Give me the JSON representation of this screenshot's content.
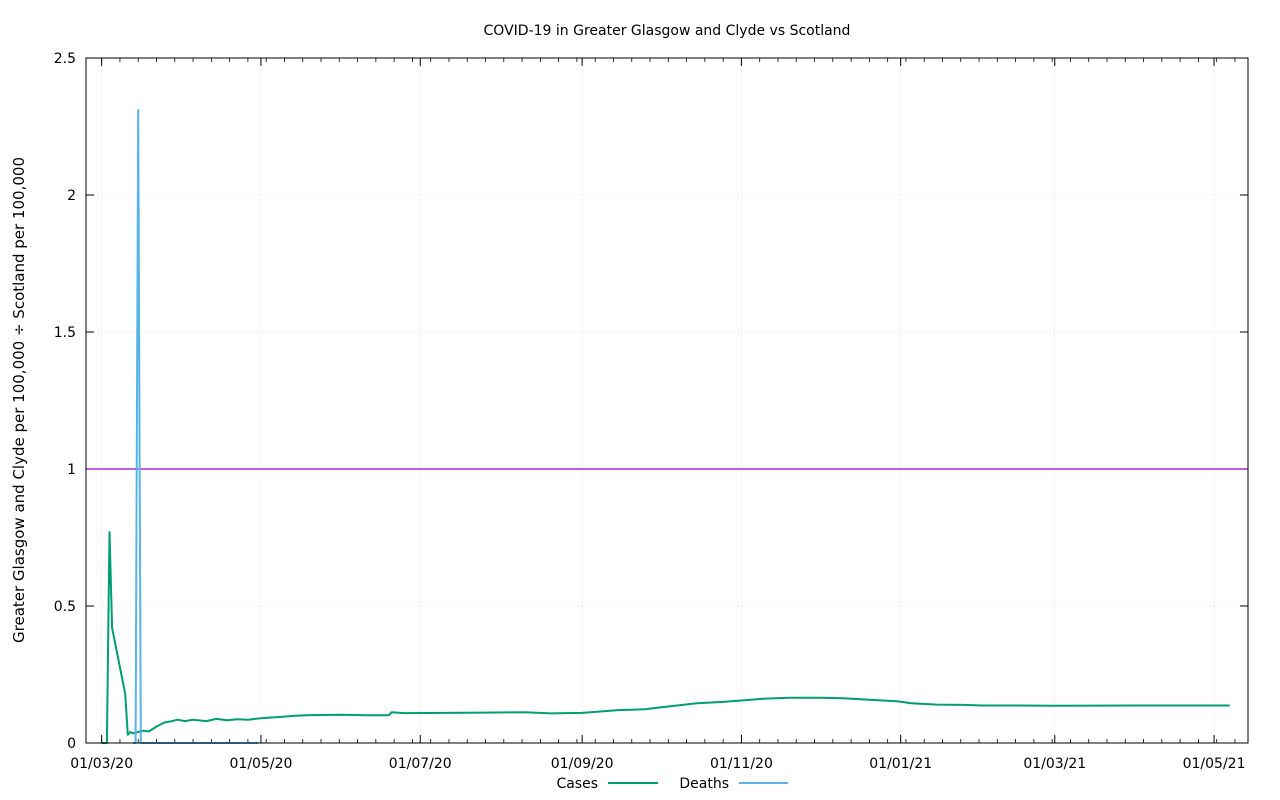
{
  "chart_data": {
    "type": "line",
    "title": "COVID-19 in Greater Glasgow and Clyde vs Scotland",
    "xlabel": "",
    "ylabel": "Greater Glasgow and Clyde per 100,000 ÷ Scotland per 100,000",
    "x_start": "2020-02-24",
    "x_end": "2021-05-14",
    "ylim": [
      0,
      2.5
    ],
    "y_ticks": [
      0,
      0.5,
      1,
      1.5,
      2,
      2.5
    ],
    "y_tick_labels": [
      "0",
      "0.5",
      "1",
      "1.5",
      "2",
      "2.5"
    ],
    "x_ticks": [
      "2020-03-01",
      "2020-05-01",
      "2020-07-01",
      "2020-09-01",
      "2020-11-01",
      "2021-01-01",
      "2021-03-01",
      "2021-05-01"
    ],
    "x_tick_labels": [
      "01/03/20",
      "01/05/20",
      "01/07/20",
      "01/09/20",
      "01/11/20",
      "01/01/21",
      "01/03/21",
      "01/05/21"
    ],
    "grid": true,
    "legend_position": "bottom",
    "reference_line": {
      "y": 1,
      "color": "#9400d3"
    },
    "series": [
      {
        "name": "Cases",
        "color": "#009e73",
        "points": [
          [
            "2020-03-01",
            0
          ],
          [
            "2020-03-02",
            0
          ],
          [
            "2020-03-03",
            0
          ],
          [
            "2020-03-04",
            0.77
          ],
          [
            "2020-03-05",
            0.42
          ],
          [
            "2020-03-10",
            0.18
          ],
          [
            "2020-03-11",
            0.03
          ],
          [
            "2020-03-12",
            0.04
          ],
          [
            "2020-03-13",
            0.035
          ],
          [
            "2020-03-15",
            0.04
          ],
          [
            "2020-03-17",
            0.045
          ],
          [
            "2020-03-19",
            0.042
          ],
          [
            "2020-03-22",
            0.06
          ],
          [
            "2020-03-25",
            0.075
          ],
          [
            "2020-03-28",
            0.08
          ],
          [
            "2020-03-30",
            0.085
          ],
          [
            "2020-04-02",
            0.08
          ],
          [
            "2020-04-05",
            0.085
          ],
          [
            "2020-04-10",
            0.08
          ],
          [
            "2020-04-14",
            0.088
          ],
          [
            "2020-04-18",
            0.083
          ],
          [
            "2020-04-22",
            0.087
          ],
          [
            "2020-04-26",
            0.085
          ],
          [
            "2020-05-01",
            0.09
          ],
          [
            "2020-05-08",
            0.095
          ],
          [
            "2020-05-15",
            0.1
          ],
          [
            "2020-05-20",
            0.102
          ],
          [
            "2020-06-01",
            0.103
          ],
          [
            "2020-06-10",
            0.101
          ],
          [
            "2020-06-19",
            0.101
          ],
          [
            "2020-06-20",
            0.112
          ],
          [
            "2020-06-25",
            0.109
          ],
          [
            "2020-07-10",
            0.11
          ],
          [
            "2020-07-25",
            0.111
          ],
          [
            "2020-08-10",
            0.112
          ],
          [
            "2020-08-20",
            0.108
          ],
          [
            "2020-09-01",
            0.11
          ],
          [
            "2020-09-15",
            0.12
          ],
          [
            "2020-09-25",
            0.123
          ],
          [
            "2020-10-01",
            0.13
          ],
          [
            "2020-10-15",
            0.145
          ],
          [
            "2020-10-25",
            0.15
          ],
          [
            "2020-11-01",
            0.155
          ],
          [
            "2020-11-10",
            0.162
          ],
          [
            "2020-11-20",
            0.165
          ],
          [
            "2020-12-01",
            0.165
          ],
          [
            "2020-12-10",
            0.163
          ],
          [
            "2020-12-20",
            0.158
          ],
          [
            "2020-12-31",
            0.152
          ],
          [
            "2021-01-05",
            0.145
          ],
          [
            "2021-01-15",
            0.14
          ],
          [
            "2021-01-25",
            0.139
          ],
          [
            "2021-02-01",
            0.137
          ],
          [
            "2021-02-15",
            0.137
          ],
          [
            "2021-03-01",
            0.136
          ],
          [
            "2021-04-01",
            0.137
          ],
          [
            "2021-05-01",
            0.137
          ],
          [
            "2021-05-07",
            0.137
          ]
        ]
      },
      {
        "name": "Deaths",
        "color": "#56b4e9",
        "points": [
          [
            "2020-03-13",
            0
          ],
          [
            "2020-03-14",
            0
          ],
          [
            "2020-03-15",
            2.31
          ],
          [
            "2020-03-16",
            0
          ],
          [
            "2020-04-01",
            0
          ],
          [
            "2020-04-20",
            0
          ],
          [
            "2020-04-30",
            0
          ]
        ]
      }
    ]
  }
}
